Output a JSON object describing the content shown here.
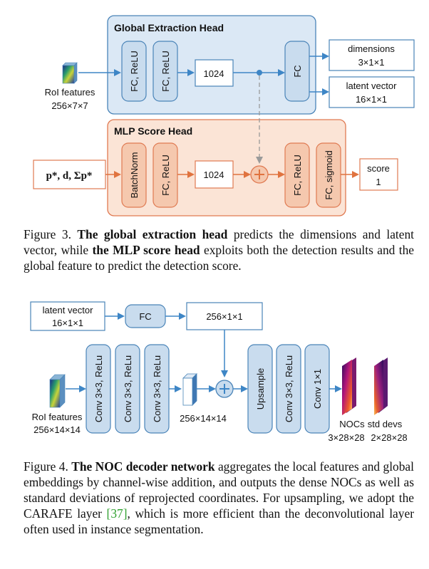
{
  "figure3": {
    "global_head_title": "Global Extraction Head",
    "mlp_head_title": "MLP Score Head",
    "roi_features_label": "RoI features",
    "roi_features_size": "256×7×7",
    "global_layers": [
      "FC, ReLU",
      "FC, ReLU"
    ],
    "global_fc_dim": "1024",
    "global_out_fc": "FC",
    "dimensions_label": "dimensions",
    "dimensions_size": "3×1×1",
    "latent_label": "latent vector",
    "latent_size": "16×1×1",
    "mlp_input": "p*, d, Σp*",
    "mlp_layers": [
      "BatchNorm",
      "FC, ReLU"
    ],
    "mlp_fc_dim": "1024",
    "mlp_out_layers": [
      "FC, ReLU",
      "FC, sigmoid"
    ],
    "score_label": "score",
    "score_value": "1",
    "caption_num": "Figure 3.",
    "caption_bold1": "The global extraction head",
    "caption_mid": "predicts the dimensions and latent vector, while",
    "caption_bold2": "the MLP score head",
    "caption_end": "exploits both the detection results and the global feature to predict the detection score."
  },
  "figure4": {
    "latent_label": "latent vector",
    "latent_size": "16×1×1",
    "fc_label": "FC",
    "embed_size": "256×1×1",
    "conv_layers": [
      "Conv 3×3, ReLu",
      "Conv 3×3, ReLu",
      "Conv 3×3, ReLu"
    ],
    "feat_size": "256×14×14",
    "roi_features_label": "RoI features",
    "roi_features_size": "256×14×14",
    "upsample_label": "Upsample",
    "conv_after": "Conv 3×3, ReLu",
    "conv_final": "Conv 1×1",
    "nocs_label": "NOCs",
    "nocs_size": "3×28×28",
    "std_label": "std devs",
    "std_size": "2×28×28",
    "caption_num": "Figure 4.",
    "caption_bold": "The NOC decoder network",
    "caption_rest": "aggregates the local features and global embeddings by channel-wise addition, and outputs the dense NOCs as well as standard deviations of reprojected coordinates. For upsampling, we adopt the CARAFE layer",
    "citation": "[37]",
    "caption_tail": ", which is more efficient than the deconvolutional layer often used in instance segmentation."
  },
  "colors": {
    "global_bg": "#dbe8f5",
    "global_border": "#4a84b8",
    "mlp_bg": "#fbe4d6",
    "mlp_border": "#e07a52",
    "blue_box": "#c9dcee",
    "orange_box": "#f5c8ae",
    "orange_arrow": "#e0733f",
    "blue_arrow": "#3e86c6",
    "citation": "#2fa02f"
  }
}
